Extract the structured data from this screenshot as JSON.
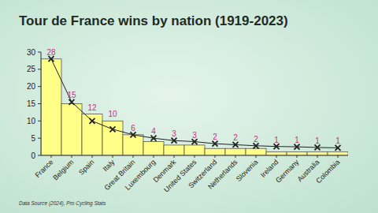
{
  "chart_data": {
    "type": "bar",
    "title": "Tour de France wins by nation (1919-2023)",
    "annotations": [
      "Data Source (2024), Pro Cycling Stats"
    ],
    "categories": [
      "France",
      "Belgium",
      "Spain",
      "Italy",
      "Great Britain",
      "Luxembourg",
      "Denmark",
      "United States",
      "Switzerland",
      "Netherlands",
      "Slovenia",
      "Ireland",
      "Germany",
      "Australia",
      "Colombia"
    ],
    "series": [
      {
        "type": "bar",
        "color": "#ffff88",
        "data_labels": true,
        "values": [
          28,
          15,
          12,
          10,
          6,
          4,
          3,
          3,
          2,
          2,
          2,
          1,
          1,
          1,
          1
        ]
      },
      {
        "type": "line",
        "color": "#222222",
        "marker": "x",
        "line_style": "solid",
        "values": [
          28,
          15.5,
          10,
          7.6,
          6,
          5,
          4.3,
          4,
          3.4,
          3.1,
          2.8,
          2.6,
          2.5,
          2.3,
          2.2
        ]
      }
    ],
    "ylim": [
      0,
      30
    ],
    "yticks": [
      0,
      5,
      10,
      15,
      20,
      25,
      30
    ],
    "grid": false
  }
}
